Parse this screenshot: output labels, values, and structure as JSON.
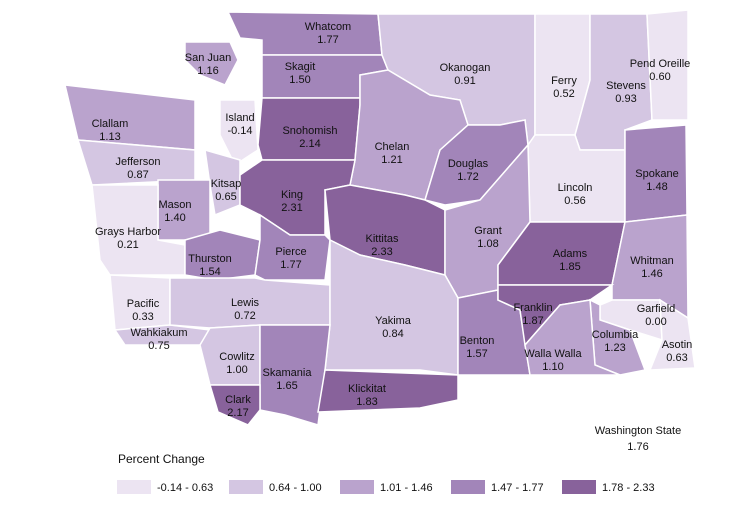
{
  "legend": {
    "title": "Percent Change",
    "classes": [
      {
        "label": "-0.14 - 0.63",
        "min": -0.14,
        "max": 0.63,
        "color": "#ece4f2"
      },
      {
        "label": "0.64 - 1.00",
        "min": 0.64,
        "max": 1.0,
        "color": "#d4c6e2"
      },
      {
        "label": "1.01 - 1.46",
        "min": 1.01,
        "max": 1.46,
        "color": "#baa3cd"
      },
      {
        "label": "1.47 - 1.77",
        "min": 1.47,
        "max": 1.77,
        "color": "#a285b9"
      },
      {
        "label": "1.78 - 2.33",
        "min": 1.78,
        "max": 2.33,
        "color": "#88629b"
      }
    ]
  },
  "counties": [
    {
      "name": "Whatcom",
      "value": 1.77
    },
    {
      "name": "San Juan",
      "value": 1.16
    },
    {
      "name": "Skagit",
      "value": 1.5,
      "value_label": "1.50"
    },
    {
      "name": "Okanogan",
      "value": 0.91
    },
    {
      "name": "Ferry",
      "value": 0.52
    },
    {
      "name": "Stevens",
      "value": 0.93
    },
    {
      "name": "Pend Oreille",
      "value": 0.6,
      "value_label": "0.60"
    },
    {
      "name": "Clallam",
      "value": 1.13
    },
    {
      "name": "Jefferson",
      "value": 0.87
    },
    {
      "name": "Island",
      "value": -0.14
    },
    {
      "name": "Snohomish",
      "value": 2.14
    },
    {
      "name": "Chelan",
      "value": 1.21
    },
    {
      "name": "Douglas",
      "value": 1.72
    },
    {
      "name": "Kitsap",
      "value": 0.65
    },
    {
      "name": "Mason",
      "value": 1.4,
      "value_label": "1.40"
    },
    {
      "name": "King",
      "value": 2.31
    },
    {
      "name": "Grays Harbor",
      "value": 0.21
    },
    {
      "name": "Lincoln",
      "value": 0.56
    },
    {
      "name": "Spokane",
      "value": 1.48
    },
    {
      "name": "Kittitas",
      "value": 2.33
    },
    {
      "name": "Grant",
      "value": 1.08
    },
    {
      "name": "Adams",
      "value": 1.85
    },
    {
      "name": "Whitman",
      "value": 1.46
    },
    {
      "name": "Thurston",
      "value": 1.54
    },
    {
      "name": "Pierce",
      "value": 1.77
    },
    {
      "name": "Pacific",
      "value": 0.33
    },
    {
      "name": "Wahkiakum",
      "value": 0.75
    },
    {
      "name": "Lewis",
      "value": 0.72
    },
    {
      "name": "Yakima",
      "value": 0.84
    },
    {
      "name": "Benton",
      "value": 1.57
    },
    {
      "name": "Franklin",
      "value": 1.87
    },
    {
      "name": "Garfield",
      "value": 0,
      "value_label": "0.00"
    },
    {
      "name": "Columbia",
      "value": 1.23
    },
    {
      "name": "Walla Walla",
      "value": 1.1,
      "value_label": "1.10"
    },
    {
      "name": "Asotin",
      "value": 0.63
    },
    {
      "name": "Cowlitz",
      "value": 1,
      "value_label": "1.00"
    },
    {
      "name": "Skamania",
      "value": 1.65
    },
    {
      "name": "Clark",
      "value": 2.17
    },
    {
      "name": "Klickitat",
      "value": 1.83
    }
  ],
  "state": {
    "name": "Washington State",
    "value": 1.76
  }
}
